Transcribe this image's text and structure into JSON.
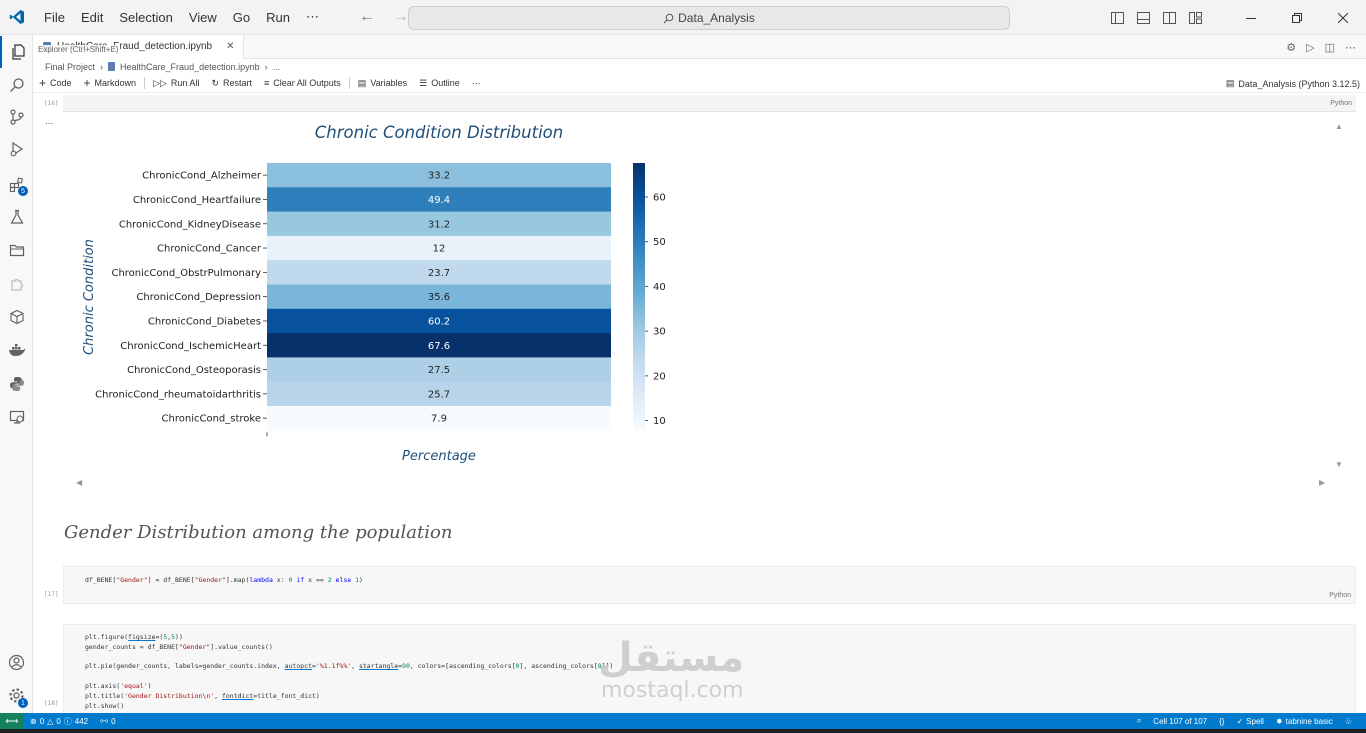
{
  "titlebar": {
    "menu": [
      "File",
      "Edit",
      "Selection",
      "View",
      "Go",
      "Run",
      "⋯"
    ],
    "search_text": "Data_Analysis"
  },
  "tab": {
    "label": "HealthCare_Fraud_detection.ipynb",
    "tooltip": "Explorer (Ctrl+Shift+E)"
  },
  "breadcrumb": [
    "Final Project",
    "HealthCare_Fraud_detection.ipynb",
    "..."
  ],
  "toolbar": {
    "code": "Code",
    "markdown": "Markdown",
    "run_all": "Run All",
    "restart": "Restart",
    "clear": "Clear All Outputs",
    "variables": "Variables",
    "outline": "Outline",
    "more": "⋯",
    "kernel": "Data_Analysis (Python 3.12.5)"
  },
  "activity_badge": "5",
  "cells": {
    "c16": {
      "count": "[16]",
      "lang": "Python"
    },
    "c17": {
      "count": "[17]",
      "lang": "Python"
    },
    "c18": {
      "count": "[18]"
    }
  },
  "output": {
    "dots": "..."
  },
  "markdown_heading": "Gender Distribution among the population",
  "chart_data": {
    "type": "heatmap",
    "title": "Chronic Condition Distribution",
    "xlabel": "Percentage",
    "ylabel": "Chronic Condition",
    "cmap": "Blues",
    "categories": [
      "ChronicCond_Alzheimer",
      "ChronicCond_Heartfailure",
      "ChronicCond_KidneyDisease",
      "ChronicCond_Cancer",
      "ChronicCond_ObstrPulmonary",
      "ChronicCond_Depression",
      "ChronicCond_Diabetes",
      "ChronicCond_IschemicHeart",
      "ChronicCond_Osteoporasis",
      "ChronicCond_rheumatoidarthritis",
      "ChronicCond_stroke"
    ],
    "values": [
      33.2,
      49.4,
      31.2,
      12,
      23.7,
      35.6,
      60.2,
      67.6,
      27.5,
      25.7,
      7.9
    ],
    "colorbar": {
      "ticks": [
        60,
        50,
        40,
        30,
        20,
        10
      ],
      "range": [
        7.9,
        67.6
      ]
    },
    "colors": {
      "title": "#1f4e79",
      "light": "#f7fbff",
      "dark": "#08306b"
    }
  },
  "statusbar": {
    "errors": "0",
    "warnings": "0",
    "info": "442",
    "ports": "0",
    "cell_pos": "Cell 107 of 107",
    "spell": "Spell",
    "tabnine": "tabnine basic"
  },
  "watermark": {
    "arabic": "مستقل",
    "latin": "mostaql.com"
  }
}
